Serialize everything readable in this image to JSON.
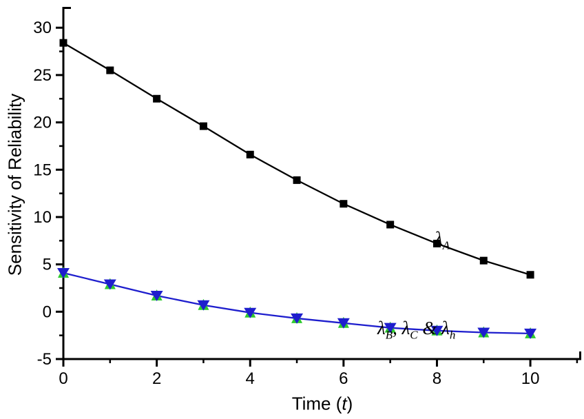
{
  "figure": {
    "ylabel": "Sensitivity of Reliability",
    "xlabel_prefix": "Time (",
    "xlabel_var": "t",
    "xlabel_suffix": ")"
  },
  "annotations": {
    "series_a": {
      "lambda": "λ",
      "sub": "A"
    },
    "group": {
      "l1": "λ",
      "s1": "B",
      "sep1": ", ",
      "l2": "λ",
      "s2": "C",
      "sep2": " & ",
      "l3": "λ",
      "s3": "h"
    }
  },
  "chart_data": {
    "type": "line",
    "title": "",
    "xlabel": "Time (t)",
    "ylabel": "Sensitivity of Reliability",
    "x": [
      0,
      1,
      2,
      3,
      4,
      5,
      6,
      7,
      8,
      9,
      10
    ],
    "series": [
      {
        "name": "λ_A",
        "color": "#000000",
        "marker": "square",
        "values": [
          28.4,
          25.5,
          22.5,
          19.6,
          16.6,
          13.9,
          11.4,
          9.2,
          7.2,
          5.4,
          3.9
        ]
      },
      {
        "name": "λ_B, λ_C & λ_h",
        "color": "#1e1ecd",
        "marker": "star-overlay",
        "marker_back_color": "#2fca2f",
        "values": [
          4.1,
          2.9,
          1.7,
          0.7,
          -0.1,
          -0.7,
          -1.2,
          -1.7,
          -2.0,
          -2.2,
          -2.3
        ]
      }
    ],
    "x_ticks": [
      0,
      2,
      4,
      6,
      8,
      10
    ],
    "x_tick_labels": [
      "0",
      "2",
      "4",
      "6",
      "8",
      "10"
    ],
    "x_minor_ticks": [
      1,
      3,
      5,
      7,
      9,
      11
    ],
    "y_ticks": [
      -5,
      0,
      5,
      10,
      15,
      20,
      25,
      30
    ],
    "y_tick_labels": [
      "-5",
      "0",
      "5",
      "10",
      "15",
      "20",
      "25",
      "30"
    ],
    "y_minor_ticks": [
      -2.5,
      2.5,
      7.5,
      12.5,
      17.5,
      22.5,
      27.5
    ],
    "xlim": [
      0,
      11.09
    ],
    "ylim": [
      -5,
      32.2
    ],
    "grid": false,
    "legend_position": "none",
    "axis_color": "#000000"
  }
}
